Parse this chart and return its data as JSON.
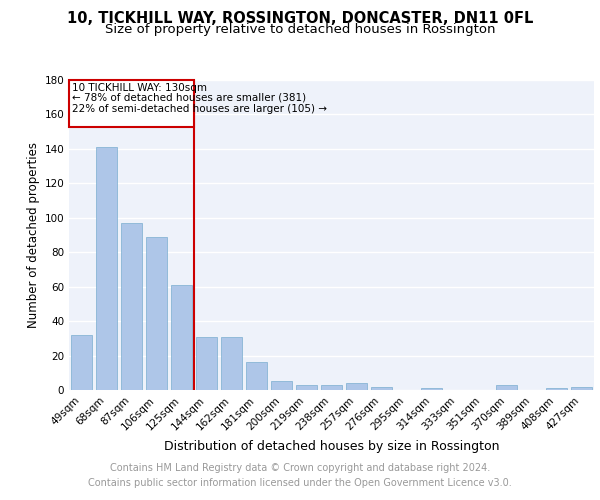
{
  "title": "10, TICKHILL WAY, ROSSINGTON, DONCASTER, DN11 0FL",
  "subtitle": "Size of property relative to detached houses in Rossington",
  "xlabel": "Distribution of detached houses by size in Rossington",
  "ylabel": "Number of detached properties",
  "categories": [
    "49sqm",
    "68sqm",
    "87sqm",
    "106sqm",
    "125sqm",
    "144sqm",
    "162sqm",
    "181sqm",
    "200sqm",
    "219sqm",
    "238sqm",
    "257sqm",
    "276sqm",
    "295sqm",
    "314sqm",
    "333sqm",
    "351sqm",
    "370sqm",
    "389sqm",
    "408sqm",
    "427sqm"
  ],
  "values": [
    32,
    141,
    97,
    89,
    61,
    31,
    31,
    16,
    5,
    3,
    3,
    4,
    2,
    0,
    1,
    0,
    0,
    3,
    0,
    1,
    2
  ],
  "bar_color": "#aec6e8",
  "bar_edge_color": "#7aaed0",
  "vline_x": 4.5,
  "vline_color": "#cc0000",
  "annotation_title": "10 TICKHILL WAY: 130sqm",
  "annotation_line1": "← 78% of detached houses are smaller (381)",
  "annotation_line2": "22% of semi-detached houses are larger (105) →",
  "annotation_box_color": "#cc0000",
  "ylim": [
    0,
    180
  ],
  "yticks": [
    0,
    20,
    40,
    60,
    80,
    100,
    120,
    140,
    160,
    180
  ],
  "footer_line1": "Contains HM Land Registry data © Crown copyright and database right 2024.",
  "footer_line2": "Contains public sector information licensed under the Open Government Licence v3.0.",
  "bg_color": "#eef2fa",
  "grid_color": "#ffffff",
  "title_fontsize": 10.5,
  "subtitle_fontsize": 9.5,
  "axis_fontsize": 8.5,
  "tick_fontsize": 7.5,
  "footer_fontsize": 7.0
}
